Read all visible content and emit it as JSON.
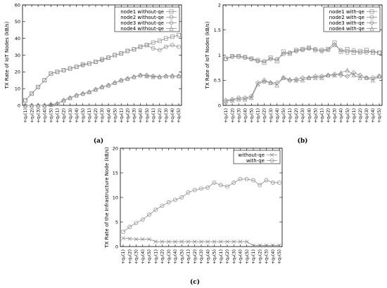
{
  "chart_data": [
    {
      "type": "line",
      "caption": "(a)",
      "ylabel": "TX Rate of IoT Nodes (kB/s)",
      "xlabel": "",
      "ylim": [
        0,
        60
      ],
      "yticks": [
        "0",
        "10",
        "20",
        "30",
        "40",
        "50",
        "60"
      ],
      "categories": [
        "+q₁(1)",
        "+q₁(2)",
        "+q₁(3)",
        "+q₁(4)",
        "+q₁(5)",
        "+q₂(1)",
        "+q₂(2)",
        "+q₂(3)",
        "+q₂(4)",
        "+q₂(5)",
        "+q₃(1)",
        "+q₃(2)",
        "+q₃(3)",
        "+q₃(4)",
        "+q₃(5)",
        "+q₄(1)",
        "+q₄(2)",
        "+q₄(3)",
        "+q₄(4)",
        "+q₄(5)",
        "+q₅(1)",
        "+q₅(2)",
        "+q₅(3)",
        "+q₅(4)",
        "+q₅(5)"
      ],
      "legend_position": "top-right",
      "series": [
        {
          "name": "node1 without-qe",
          "marker": "square",
          "values": [
            3,
            7,
            11,
            15,
            19,
            20,
            21,
            22,
            23,
            24.5,
            25,
            26,
            27.5,
            28.5,
            30,
            31,
            32.5,
            33.5,
            35,
            36,
            37.5,
            38.5,
            40,
            41,
            42
          ]
        },
        {
          "name": "node2 without-qe",
          "marker": "circle",
          "values": [
            3,
            7,
            11,
            15,
            19,
            20,
            21,
            22,
            23,
            24,
            25,
            26,
            27,
            28.5,
            30,
            31,
            32.5,
            33.5,
            35,
            36,
            34,
            33,
            35,
            36,
            35
          ]
        },
        {
          "name": "node3 without-qe",
          "marker": "diamond",
          "values": [
            0,
            0,
            0,
            0,
            0.5,
            1,
            3,
            4.5,
            6,
            7,
            8,
            9.5,
            11,
            12,
            13.5,
            15,
            16,
            17,
            18,
            18,
            17.5,
            17,
            17.5,
            17.5,
            17.5
          ]
        },
        {
          "name": "node4 without-qe",
          "marker": "triangle",
          "values": [
            0,
            0,
            0,
            0,
            0.5,
            1,
            3,
            4.5,
            6,
            7,
            8,
            9.5,
            11,
            12,
            13.5,
            15,
            16,
            17,
            18,
            17.5,
            17,
            17,
            17.5,
            17.5,
            17.5
          ]
        }
      ]
    },
    {
      "type": "line",
      "caption": "(b)",
      "ylabel": "TX Rate of IoT Nodes (kB/s)",
      "xlabel": "",
      "ylim": [
        0,
        2
      ],
      "yticks": [
        "0",
        "0.5",
        "1",
        "1.5",
        "2"
      ],
      "categories": [
        "+q₁(1)",
        "+q₁(2)",
        "+q₁(3)",
        "+q₁(4)",
        "+q₁(5)",
        "+q₂(1)",
        "+q₂(2)",
        "+q₂(3)",
        "+q₂(4)",
        "+q₂(5)",
        "+q₃(1)",
        "+q₃(2)",
        "+q₃(3)",
        "+q₃(4)",
        "+q₃(5)",
        "+q₄(1)",
        "+q₄(2)",
        "+q₄(3)",
        "+q₄(4)",
        "+q₄(5)",
        "+q₅(1)",
        "+q₅(2)",
        "+q₅(3)",
        "+q₅(4)",
        "+q₅(5)"
      ],
      "legend_position": "top-right",
      "series": [
        {
          "name": "node1 with-qe",
          "marker": "square",
          "values": [
            0.93,
            0.98,
            0.98,
            0.96,
            0.93,
            0.9,
            0.85,
            0.95,
            0.88,
            1.07,
            1.03,
            1.1,
            1.12,
            1.15,
            1.1,
            1.1,
            1.12,
            1.25,
            1.07,
            1.12,
            1.05,
            1.08,
            1.1,
            1.05,
            1.05
          ]
        },
        {
          "name": "node2 with-qe",
          "marker": "circle",
          "values": [
            0.92,
            0.97,
            0.97,
            0.95,
            0.92,
            0.88,
            0.88,
            0.92,
            0.92,
            1.02,
            1.05,
            1.08,
            1.1,
            1.13,
            1.12,
            1.08,
            1.1,
            1.2,
            1.1,
            1.05,
            1.1,
            1.05,
            1.05,
            1.08,
            1.05
          ]
        },
        {
          "name": "node3 with-qe",
          "marker": "diamond",
          "values": [
            0.1,
            0.12,
            0.15,
            0.15,
            0.18,
            0.45,
            0.5,
            0.45,
            0.45,
            0.55,
            0.5,
            0.52,
            0.55,
            0.55,
            0.58,
            0.58,
            0.6,
            0.62,
            0.6,
            0.58,
            0.65,
            0.6,
            0.55,
            0.55,
            0.58
          ]
        },
        {
          "name": "node4 with-qe",
          "marker": "triangle",
          "values": [
            0.08,
            0.1,
            0.12,
            0.12,
            0.15,
            0.42,
            0.48,
            0.45,
            0.4,
            0.55,
            0.52,
            0.5,
            0.5,
            0.55,
            0.55,
            0.55,
            0.6,
            0.6,
            0.65,
            0.7,
            0.6,
            0.55,
            0.55,
            0.5,
            0.58
          ]
        }
      ]
    },
    {
      "type": "line",
      "caption": "(c)",
      "ylabel": "TX Rate of the Infrastructure Node (kB/s)",
      "xlabel": "",
      "ylim": [
        0,
        20
      ],
      "yticks": [
        "0",
        "5",
        "10",
        "15",
        "20"
      ],
      "categories": [
        "+q₁(1)",
        "+q₁(2)",
        "+q₁(3)",
        "+q₁(4)",
        "+q₁(5)",
        "+q₂(1)",
        "+q₂(2)",
        "+q₂(3)",
        "+q₂(4)",
        "+q₂(5)",
        "+q₃(1)",
        "+q₃(2)",
        "+q₃(3)",
        "+q₃(4)",
        "+q₃(5)",
        "+q₄(1)",
        "+q₄(2)",
        "+q₄(3)",
        "+q₄(4)",
        "+q₄(5)",
        "+q₅(1)",
        "+q₅(2)",
        "+q₅(3)",
        "+q₅(4)",
        "+q₅(5)"
      ],
      "legend_position": "top-right",
      "series": [
        {
          "name": "without-qe",
          "marker": "cross",
          "values": [
            1.7,
            1.6,
            1.5,
            1.5,
            1.5,
            1,
            1,
            1,
            1,
            1,
            1,
            1,
            1,
            1,
            1,
            1,
            1,
            1,
            1,
            1,
            0.2,
            0.2,
            0.2,
            0.2,
            0.2
          ]
        },
        {
          "name": "with-qe",
          "marker": "circle",
          "values": [
            3,
            4,
            4.8,
            5.5,
            6.5,
            7.5,
            8.3,
            9,
            9.5,
            10,
            11,
            11.5,
            11.8,
            12,
            13,
            12.5,
            12.2,
            13,
            13.7,
            13.7,
            13.5,
            12.5,
            13.5,
            13,
            13
          ]
        }
      ]
    }
  ]
}
